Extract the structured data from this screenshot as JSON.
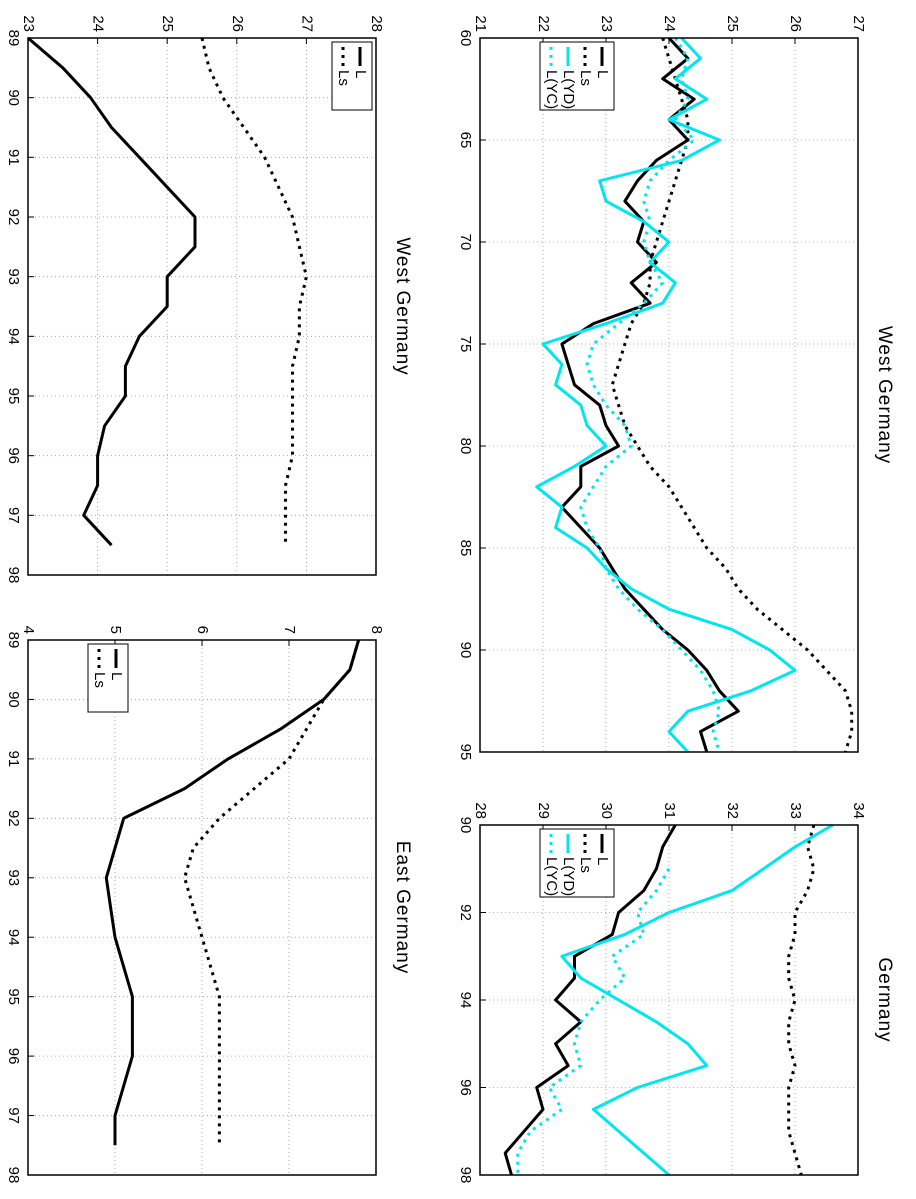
{
  "chart_data": [
    {
      "type": "line",
      "title": "West Germany",
      "x": [
        60,
        61,
        62,
        63,
        64,
        65,
        66,
        67,
        68,
        69,
        70,
        71,
        72,
        73,
        74,
        75,
        76,
        77,
        78,
        79,
        80,
        81,
        82,
        83,
        84,
        85,
        86,
        87,
        88,
        89,
        90,
        91,
        92,
        93,
        94,
        95
      ],
      "series": [
        {
          "name": "L",
          "color": "#000000",
          "style": "solid",
          "values": [
            24.0,
            24.3,
            23.9,
            24.4,
            24.0,
            24.3,
            23.8,
            23.5,
            23.3,
            23.6,
            23.5,
            23.8,
            23.4,
            23.7,
            22.8,
            22.3,
            22.4,
            22.5,
            22.9,
            23.0,
            23.2,
            22.6,
            22.6,
            22.3,
            22.6,
            22.9,
            23.1,
            23.3,
            23.6,
            23.9,
            24.3,
            24.6,
            24.8,
            25.1,
            24.5,
            24.6
          ]
        },
        {
          "name": "Ls",
          "color": "#000000",
          "style": "dotted",
          "values": [
            23.9,
            24.0,
            24.1,
            24.2,
            24.3,
            24.3,
            24.2,
            24.1,
            24.0,
            23.9,
            23.8,
            23.7,
            23.7,
            23.6,
            23.4,
            23.3,
            23.2,
            23.1,
            23.2,
            23.3,
            23.5,
            23.7,
            24.0,
            24.2,
            24.4,
            24.6,
            24.9,
            25.1,
            25.4,
            25.8,
            26.2,
            26.5,
            26.8,
            26.9,
            26.9,
            26.8
          ]
        },
        {
          "name": "L(YD)",
          "color": "#00e5ee",
          "style": "solid",
          "values": [
            24.2,
            24.5,
            24.1,
            24.6,
            24.0,
            24.8,
            24.2,
            22.9,
            23.0,
            23.6,
            24.0,
            23.7,
            24.1,
            23.9,
            23.0,
            22.0,
            22.3,
            22.2,
            22.6,
            22.7,
            23.0,
            22.5,
            21.9,
            22.3,
            22.2,
            22.7,
            23.0,
            23.4,
            24.0,
            25.0,
            25.6,
            26.0,
            25.3,
            24.3,
            24.0,
            24.3
          ]
        },
        {
          "name": "L(YC)",
          "color": "#00e5ee",
          "style": "dotted",
          "values": [
            24.1,
            24.3,
            24.2,
            24.3,
            24.1,
            24.4,
            24.0,
            23.7,
            23.6,
            23.7,
            23.6,
            23.7,
            23.9,
            23.6,
            23.2,
            22.8,
            22.7,
            22.8,
            23.0,
            23.3,
            23.4,
            23.0,
            22.8,
            22.6,
            22.7,
            22.9,
            23.0,
            23.2,
            23.5,
            23.9,
            24.2,
            24.5,
            24.7,
            24.8,
            24.7,
            24.8
          ]
        }
      ],
      "xlim": [
        60,
        95
      ],
      "ylim": [
        21,
        27
      ],
      "xticks": [
        60,
        65,
        70,
        75,
        80,
        85,
        90,
        95
      ],
      "yticks": [
        21,
        22,
        23,
        24,
        25,
        26,
        27
      ],
      "grid": true,
      "legend": "lower left"
    },
    {
      "type": "line",
      "title": "Germany",
      "x": [
        90,
        90.5,
        91,
        91.5,
        92,
        92.5,
        93,
        93.5,
        94,
        94.5,
        95,
        95.5,
        96,
        96.5,
        97,
        97.5,
        98
      ],
      "series": [
        {
          "name": "L",
          "color": "#000000",
          "style": "solid",
          "values": [
            31.1,
            30.9,
            30.8,
            30.6,
            30.2,
            30.1,
            29.5,
            29.5,
            29.2,
            29.6,
            29.2,
            29.4,
            28.9,
            29.0,
            28.7,
            28.4,
            28.5
          ]
        },
        {
          "name": "Ls",
          "color": "#000000",
          "style": "dotted",
          "values": [
            33.3,
            33.2,
            33.3,
            33.2,
            33.0,
            33.0,
            32.9,
            32.9,
            33.0,
            32.9,
            32.9,
            33.0,
            32.9,
            32.9,
            32.9,
            33.0,
            33.1
          ]
        },
        {
          "name": "L(YD)",
          "color": "#00e5ee",
          "style": "solid",
          "values": [
            33.6,
            33.0,
            32.5,
            32.0,
            31.0,
            30.3,
            29.3,
            29.6,
            30.2,
            30.8,
            31.3,
            31.6,
            30.5,
            29.8,
            30.2,
            30.6,
            31.0
          ]
        },
        {
          "name": "L(YC)",
          "color": "#00e5ee",
          "style": "dotted",
          "values": [
            null,
            null,
            31.0,
            30.8,
            30.5,
            30.6,
            30.1,
            30.3,
            29.9,
            29.6,
            29.5,
            29.6,
            29.1,
            29.3,
            28.8,
            28.6,
            28.6
          ]
        }
      ],
      "xlim": [
        90,
        98
      ],
      "ylim": [
        28,
        34
      ],
      "xticks": [
        90,
        92,
        94,
        96,
        98
      ],
      "yticks": [
        28,
        29,
        30,
        31,
        32,
        33,
        34
      ],
      "grid": true,
      "legend": "lower left"
    },
    {
      "type": "line",
      "title": "West Germany",
      "x": [
        89,
        89.5,
        90,
        90.5,
        91,
        91.5,
        92,
        92.5,
        93,
        93.5,
        94,
        94.5,
        95,
        95.5,
        96,
        96.5,
        97,
        97.5
      ],
      "series": [
        {
          "name": "L",
          "color": "#000000",
          "style": "solid",
          "values": [
            23.0,
            23.5,
            23.9,
            24.2,
            24.6,
            25.0,
            25.4,
            25.4,
            25.0,
            25.0,
            24.6,
            24.4,
            24.4,
            24.1,
            24.0,
            24.0,
            23.8,
            24.2
          ]
        },
        {
          "name": "Ls",
          "color": "#000000",
          "style": "dotted",
          "values": [
            25.5,
            25.6,
            25.8,
            26.1,
            26.4,
            26.6,
            26.8,
            26.9,
            27.0,
            26.9,
            26.9,
            26.8,
            26.8,
            26.8,
            26.8,
            26.7,
            26.7,
            26.7
          ]
        }
      ],
      "xlim": [
        89,
        98
      ],
      "ylim": [
        23,
        28
      ],
      "xticks": [
        89,
        90,
        91,
        92,
        93,
        94,
        95,
        96,
        97,
        98
      ],
      "yticks": [
        23,
        24,
        25,
        26,
        27,
        28
      ],
      "grid": true,
      "legend": "upper left"
    },
    {
      "type": "line",
      "title": "East Germany",
      "x": [
        89,
        89.5,
        90,
        90.5,
        91,
        91.5,
        92,
        92.5,
        93,
        93.5,
        94,
        94.5,
        95,
        95.5,
        96,
        96.5,
        97,
        97.5
      ],
      "series": [
        {
          "name": "L",
          "color": "#000000",
          "style": "solid",
          "values": [
            7.8,
            7.7,
            7.4,
            6.9,
            6.3,
            5.8,
            5.1,
            5.0,
            4.9,
            4.95,
            5.0,
            5.1,
            5.2,
            5.2,
            5.2,
            5.1,
            5.0,
            5.0
          ]
        },
        {
          "name": "Ls",
          "color": "#000000",
          "style": "dotted",
          "values": [
            7.8,
            7.7,
            7.4,
            7.2,
            7.0,
            6.6,
            6.2,
            5.9,
            5.8,
            5.9,
            6.0,
            6.1,
            6.2,
            6.2,
            6.2,
            6.2,
            6.2,
            6.2
          ]
        }
      ],
      "xlim": [
        89,
        98
      ],
      "ylim": [
        4,
        8
      ],
      "xticks": [
        89,
        90,
        91,
        92,
        93,
        94,
        95,
        96,
        97,
        98
      ],
      "yticks": [
        4,
        5,
        6,
        7,
        8
      ],
      "grid": true,
      "legend": "lower left"
    }
  ]
}
